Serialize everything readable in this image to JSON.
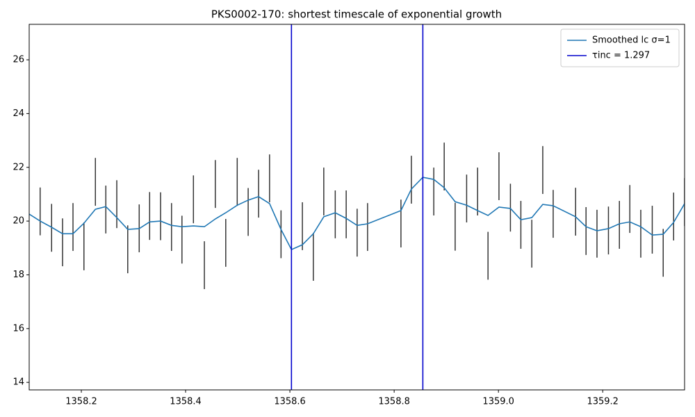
{
  "chart_data": {
    "type": "line",
    "title": "PKS0002-170: shortest timescale of exponential growth",
    "xlim": [
      1358.1,
      1359.357
    ],
    "ylim": [
      13.72,
      27.32
    ],
    "xticks": [
      1358.2,
      1358.4,
      1358.6,
      1358.8,
      {
        "value": 1359,
        "label": "1359.0"
      },
      1359.2
    ],
    "yticks": [
      14,
      16,
      18,
      20,
      22,
      24,
      26
    ],
    "legend": "upper right",
    "series": [
      {
        "name": "Smoothed lc σ=1",
        "color": "#1f77b4",
        "x": [
          1358.1,
          1358.121,
          1358.143,
          1358.164,
          1358.184,
          1358.205,
          1358.227,
          1358.247,
          1358.268,
          1358.289,
          1358.311,
          1358.331,
          1358.352,
          1358.373,
          1358.393,
          1358.415,
          1358.436,
          1358.457,
          1358.477,
          1358.499,
          1358.52,
          1358.54,
          1358.561,
          1358.583,
          1358.603,
          1358.624,
          1358.645,
          1358.665,
          1358.687,
          1358.708,
          1358.729,
          1358.749,
          1358.813,
          1358.833,
          1358.855,
          1358.876,
          1358.896,
          1358.917,
          1358.939,
          1358.96,
          1358.98,
          1359.001,
          1359.023,
          1359.043,
          1359.064,
          1359.085,
          1359.105,
          1359.148,
          1359.168,
          1359.189,
          1359.211,
          1359.232,
          1359.252,
          1359.273,
          1359.295,
          1359.316,
          1359.336,
          1359.357
        ],
        "values": [
          20.26,
          20.0,
          19.77,
          19.53,
          19.53,
          19.92,
          20.44,
          20.54,
          20.13,
          19.69,
          19.72,
          19.97,
          20.0,
          19.84,
          19.79,
          19.82,
          19.79,
          20.08,
          20.31,
          20.59,
          20.78,
          20.91,
          20.65,
          19.69,
          18.94,
          19.12,
          19.53,
          20.16,
          20.31,
          20.1,
          19.84,
          19.9,
          20.39,
          21.19,
          21.63,
          21.55,
          21.24,
          20.72,
          20.59,
          20.39,
          20.21,
          20.52,
          20.47,
          20.05,
          20.13,
          20.62,
          20.57,
          20.16,
          19.79,
          19.64,
          19.72,
          19.9,
          19.97,
          19.79,
          19.48,
          19.51,
          19.95,
          20.65
        ]
      },
      {
        "type": "errorbar",
        "color": "#333333",
        "x": [
          1358.121,
          1358.143,
          1358.164,
          1358.184,
          1358.205,
          1358.227,
          1358.247,
          1358.268,
          1358.289,
          1358.311,
          1358.331,
          1358.352,
          1358.373,
          1358.393,
          1358.415,
          1358.436,
          1358.457,
          1358.477,
          1358.499,
          1358.52,
          1358.54,
          1358.561,
          1358.583,
          1358.624,
          1358.645,
          1358.665,
          1358.687,
          1358.708,
          1358.729,
          1358.749,
          1358.813,
          1358.833,
          1358.876,
          1358.896,
          1358.917,
          1358.939,
          1358.96,
          1358.98,
          1359.001,
          1359.023,
          1359.043,
          1359.064,
          1359.085,
          1359.105,
          1359.148,
          1359.168,
          1359.189,
          1359.211,
          1359.232,
          1359.252,
          1359.273,
          1359.295,
          1359.316,
          1359.336,
          1359.357
        ],
        "values": [
          20.36,
          19.75,
          19.21,
          19.78,
          19.06,
          21.46,
          20.43,
          20.63,
          18.95,
          19.73,
          20.19,
          20.18,
          19.78,
          19.31,
          20.81,
          18.36,
          21.38,
          19.19,
          21.46,
          20.34,
          21.02,
          21.59,
          19.51,
          19.81,
          18.67,
          21.1,
          20.25,
          20.25,
          19.57,
          19.78,
          19.91,
          21.54,
          21.1,
          22.03,
          19.79,
          20.84,
          21.1,
          18.71,
          21.67,
          20.5,
          19.86,
          19.16,
          21.9,
          20.27,
          20.35,
          19.63,
          19.53,
          19.65,
          19.86,
          20.45,
          19.53,
          19.68,
          18.82,
          20.17,
          20.71
        ],
        "errors": [
          0.89,
          0.89,
          0.89,
          0.89,
          0.89,
          0.89,
          0.89,
          0.89,
          0.89,
          0.89,
          0.89,
          0.89,
          0.89,
          0.89,
          0.89,
          0.89,
          0.89,
          0.89,
          0.89,
          0.89,
          0.89,
          0.89,
          0.89,
          0.89,
          0.89,
          0.89,
          0.89,
          0.89,
          0.89,
          0.89,
          0.89,
          0.89,
          0.89,
          0.89,
          0.89,
          0.89,
          0.89,
          0.89,
          0.89,
          0.89,
          0.89,
          0.89,
          0.89,
          0.89,
          0.89,
          0.89,
          0.89,
          0.89,
          0.89,
          0.89,
          0.89,
          0.89,
          0.89,
          0.89,
          0.89
        ]
      },
      {
        "type": "vline",
        "name": "τinc = 1.297",
        "color": "#0000cc",
        "x": [
          1358.603,
          1358.855
        ]
      }
    ]
  }
}
